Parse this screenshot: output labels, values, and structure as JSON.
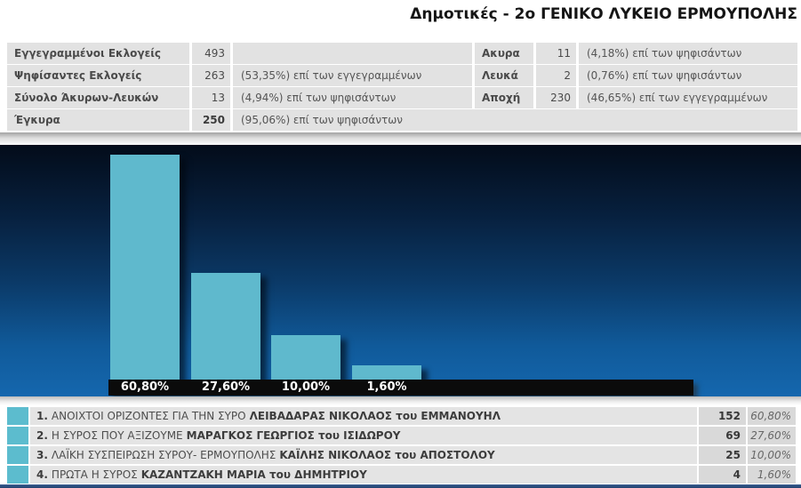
{
  "title": "Δημοτικές - 2ο ΓΕΝΙΚΟ ΛΥΚΕΙΟ ΕΡΜΟΥΠΟΛΗΣ",
  "summary_left": {
    "rows": [
      {
        "label": "Εγγεγραμμένοι Εκλογείς",
        "value": "493",
        "note": ""
      },
      {
        "label": "Ψηφίσαντες Εκλογείς",
        "value": "263",
        "note": "(53,35%) επί των εγγεγραμμένων"
      },
      {
        "label": "Σύνολο Άκυρων-Λευκών",
        "value": "13",
        "note": "(4,94%) επί των ψηφισάντων"
      },
      {
        "label": "Έγκυρα",
        "value": "250",
        "note": "(95,06%) επί των ψηφισάντων"
      }
    ]
  },
  "summary_right": {
    "rows": [
      {
        "label": "Ακυρα",
        "value": "11",
        "note": "(4,18%) επί των ψηφισάντων"
      },
      {
        "label": "Λευκά",
        "value": "2",
        "note": "(0,76%) επί των ψηφισάντων"
      },
      {
        "label": "Αποχή",
        "value": "230",
        "note": "(46,65%) επί των εγγεγραμμένων"
      }
    ]
  },
  "chart_data": {
    "type": "bar",
    "categories": [
      "ΑΝΟΙΧΤΟΙ ΟΡΙΖΟΝΤΕΣ ΓΙΑ ΤΗΝ ΣΥΡΟ",
      "Η ΣΥΡΟΣ ΠΟΥ ΑΞΙΖΟΥΜΕ",
      "ΛΑΪΚΗ ΣΥΣΠΕΙΡΩΣΗ ΣΥΡΟΥ- ΕΡΜΟΥΠΟΛΗΣ",
      "ΠΡΩΤΑ Η ΣΥΡΟΣ"
    ],
    "values": [
      60.8,
      27.6,
      10.0,
      1.6
    ],
    "value_labels": [
      "60,80%",
      "27,60%",
      "10,00%",
      "1,60%"
    ],
    "title": "",
    "xlabel": "",
    "ylabel": "",
    "ylim": [
      0,
      65
    ],
    "grid": false,
    "legend": false,
    "bar_color": "#5fb9cd",
    "background_gradient": [
      "#030c1a",
      "#1567ae"
    ],
    "label_strip_color": "#0b0b0b",
    "label_text_color": "#ffffff"
  },
  "results": {
    "swatch_color": "#5cbcce",
    "rows": [
      {
        "rank": "1.",
        "party": "ΑΝΟΙΧΤΟΙ ΟΡΙΖΟΝΤΕΣ ΓΙΑ ΤΗΝ ΣΥΡΟ",
        "candidate": "ΛΕΙΒΑΔΑΡΑΣ ΝΙΚΟΛΑΟΣ του ΕΜΜΑΝΟΥΗΛ",
        "votes": "152",
        "percent": "60,80%"
      },
      {
        "rank": "2.",
        "party": "Η ΣΥΡΟΣ ΠΟΥ ΑΞΙΖΟΥΜΕ",
        "candidate": "ΜΑΡΑΓΚΟΣ ΓΕΩΡΓΙΟΣ του ΙΣΙΔΩΡΟΥ",
        "votes": "69",
        "percent": "27,60%"
      },
      {
        "rank": "3.",
        "party": "ΛΑΪΚΗ ΣΥΣΠΕΙΡΩΣΗ ΣΥΡΟΥ- ΕΡΜΟΥΠΟΛΗΣ",
        "candidate": "ΚΑΪΛΗΣ ΝΙΚΟΛΑΟΣ του ΑΠΟΣΤΟΛΟΥ",
        "votes": "25",
        "percent": "10,00%"
      },
      {
        "rank": "4.",
        "party": "ΠΡΩΤΑ Η ΣΥΡΟΣ",
        "candidate": "ΚΑΖΑΝΤΖΑΚΗ ΜΑΡΙΑ του ΔΗΜΗΤΡΙΟΥ",
        "votes": "4",
        "percent": "1,60%"
      }
    ]
  }
}
